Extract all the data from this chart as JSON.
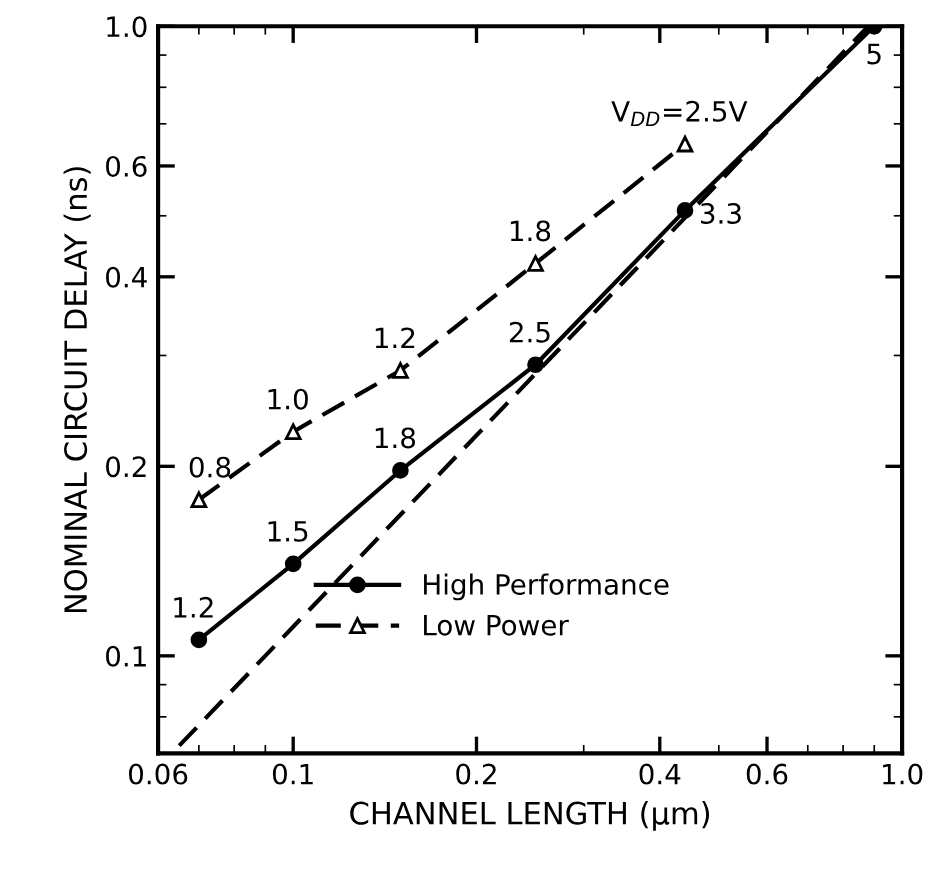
{
  "chart_data": {
    "type": "line",
    "xlabel": "CHANNEL LENGTH (μm)",
    "ylabel": "NOMINAL CIRCUIT DELAY (ns)",
    "log": "xy",
    "xlim": [
      0.06,
      1.0
    ],
    "ylim": [
      0.07,
      1.0
    ],
    "xticks": [
      0.06,
      0.1,
      0.2,
      0.4,
      0.6,
      {
        "value": 1.0,
        "label": "1.0"
      }
    ],
    "yticks": [
      0.1,
      0.2,
      0.4,
      0.6,
      {
        "value": 1.0,
        "label": "1.0"
      }
    ],
    "grid": false,
    "legend": "bottom",
    "series": [
      {
        "name": "High Performance",
        "color": "#000000",
        "marker": "circle",
        "line_style": "solid",
        "x": [
          0.07,
          0.1,
          0.15,
          0.25,
          0.44,
          0.9
        ],
        "values": [
          0.106,
          0.14,
          0.197,
          0.29,
          0.51,
          1.0
        ]
      },
      {
        "name": "Low Power",
        "color": "#000000",
        "marker": "triangle",
        "line_style": "dashed",
        "x": [
          0.07,
          0.1,
          0.15,
          0.25,
          0.44
        ],
        "values": [
          0.177,
          0.227,
          0.284,
          0.42,
          0.65
        ]
      },
      {
        "color": "#000000",
        "marker": "none",
        "line_style": "dashed",
        "x": [
          0.065,
          0.88
        ],
        "values": [
          0.072,
          1.0
        ]
      }
    ],
    "annotations": [
      {
        "text": "1.2",
        "x": 0.07,
        "y": 0.106
      },
      {
        "text": "1.5",
        "x": 0.1,
        "y": 0.14
      },
      {
        "text": "1.8",
        "x": 0.15,
        "y": 0.197
      },
      {
        "text": "2.5",
        "x": 0.25,
        "y": 0.29
      },
      {
        "text": "3.3",
        "x": 0.44,
        "y": 0.51
      },
      {
        "text": "5",
        "x": 0.9,
        "y": 1.0
      },
      {
        "text": "0.8",
        "x": 0.07,
        "y": 0.177
      },
      {
        "text": "1.0",
        "x": 0.1,
        "y": 0.227
      },
      {
        "text": "1.2",
        "x": 0.15,
        "y": 0.284
      },
      {
        "text": "1.8",
        "x": 0.25,
        "y": 0.42
      },
      {
        "text": "V$_{DD}$=2.5V",
        "x": 0.44,
        "y": 0.65
      }
    ]
  }
}
